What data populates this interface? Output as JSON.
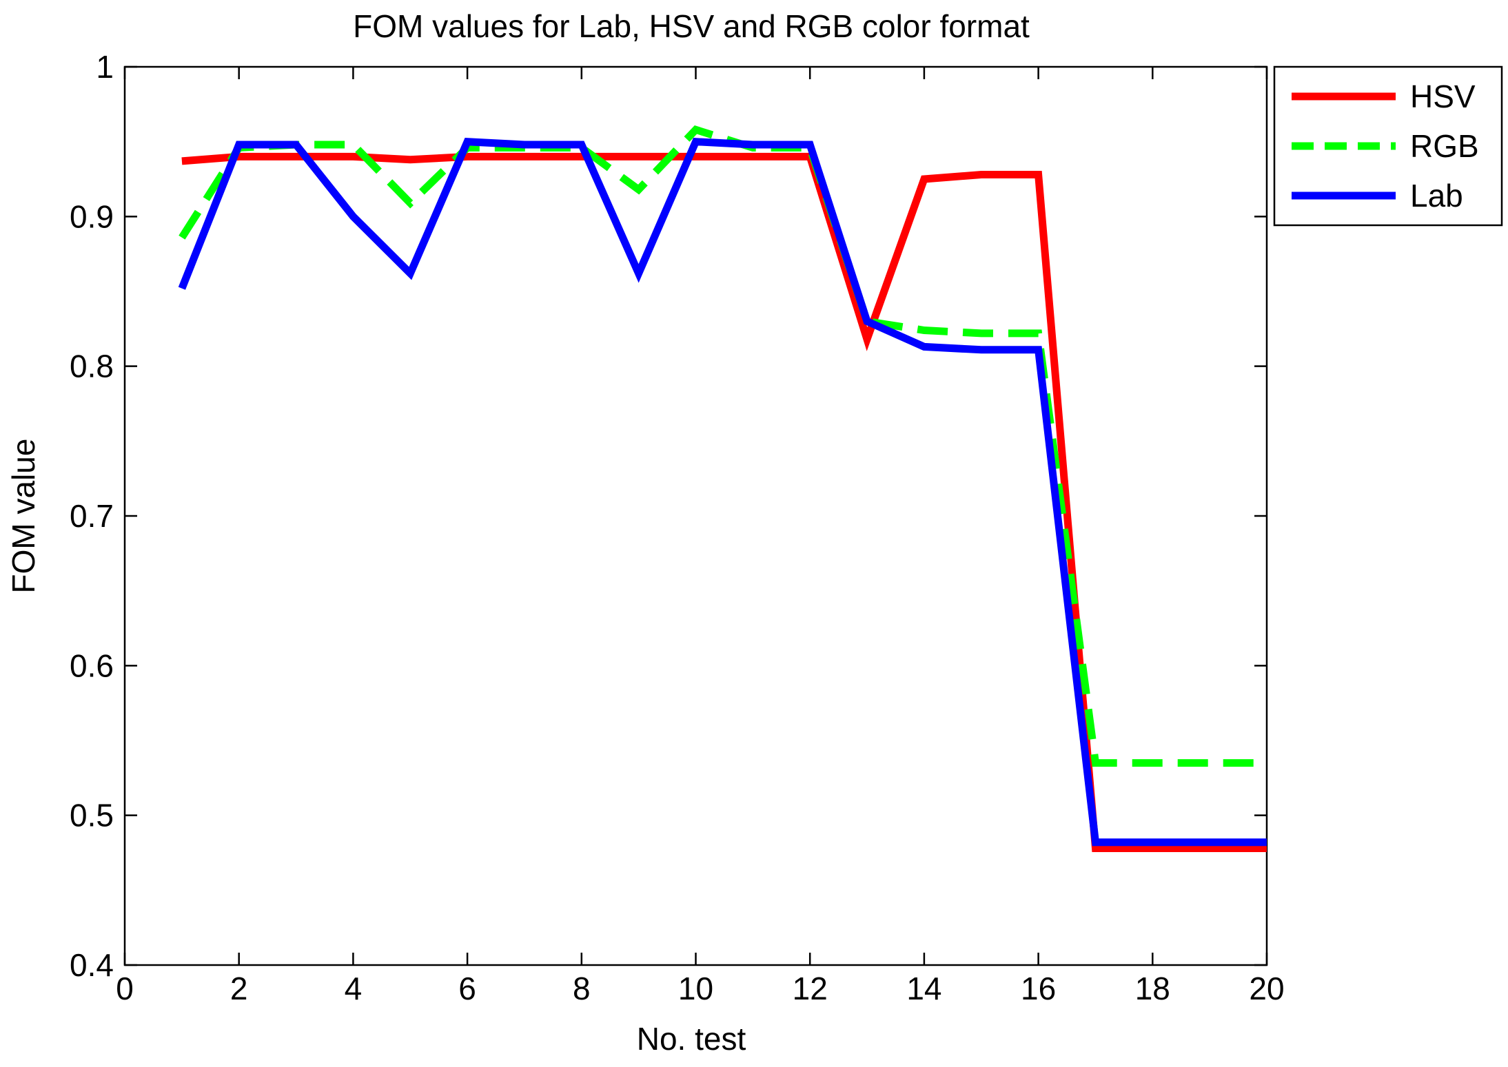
{
  "chart_data": {
    "type": "line",
    "title": "FOM values for Lab, HSV and RGB color format",
    "xlabel": "No. test",
    "ylabel": "FOM value",
    "xlim": [
      0,
      20
    ],
    "ylim": [
      0.4,
      1
    ],
    "xticks": [
      0,
      2,
      4,
      6,
      8,
      10,
      12,
      14,
      16,
      18,
      20
    ],
    "xtick_labels": [
      "0",
      "2",
      "4",
      "6",
      "8",
      "10",
      "12",
      "14",
      "16",
      "18",
      "20"
    ],
    "yticks": [
      0.4,
      0.5,
      0.6,
      0.7,
      0.8,
      0.9,
      1
    ],
    "ytick_labels": [
      "0.4",
      "0.5",
      "0.6",
      "0.7",
      "0.8",
      "0.9",
      "1"
    ],
    "grid": false,
    "legend_position": "outside-top-right",
    "series": [
      {
        "name": "HSV",
        "color": "#ff0000",
        "style": "solid",
        "x": [
          1,
          2,
          3,
          4,
          5,
          6,
          7,
          8,
          9,
          10,
          11,
          12,
          13,
          14,
          15,
          16,
          17,
          18,
          19,
          20
        ],
        "y": [
          0.937,
          0.94,
          0.94,
          0.94,
          0.938,
          0.94,
          0.94,
          0.94,
          0.94,
          0.94,
          0.94,
          0.94,
          0.818,
          0.925,
          0.928,
          0.928,
          0.478,
          0.478,
          0.478,
          0.478
        ]
      },
      {
        "name": "RGB",
        "color": "#00ff00",
        "style": "dashed",
        "x": [
          1,
          2,
          3,
          4,
          5,
          6,
          7,
          8,
          9,
          10,
          11,
          12,
          13,
          14,
          15,
          16,
          17,
          18,
          19,
          20
        ],
        "y": [
          0.886,
          0.946,
          0.948,
          0.948,
          0.909,
          0.946,
          0.946,
          0.946,
          0.918,
          0.958,
          0.946,
          0.946,
          0.83,
          0.824,
          0.822,
          0.822,
          0.535,
          0.535,
          0.535,
          0.535
        ]
      },
      {
        "name": "Lab",
        "color": "#0000ff",
        "style": "solid",
        "x": [
          1,
          2,
          3,
          4,
          5,
          6,
          7,
          8,
          9,
          10,
          11,
          12,
          13,
          14,
          15,
          16,
          17,
          18,
          19,
          20
        ],
        "y": [
          0.852,
          0.948,
          0.948,
          0.9,
          0.862,
          0.95,
          0.948,
          0.948,
          0.862,
          0.95,
          0.948,
          0.948,
          0.83,
          0.813,
          0.811,
          0.811,
          0.482,
          0.482,
          0.482,
          0.482
        ]
      }
    ]
  }
}
